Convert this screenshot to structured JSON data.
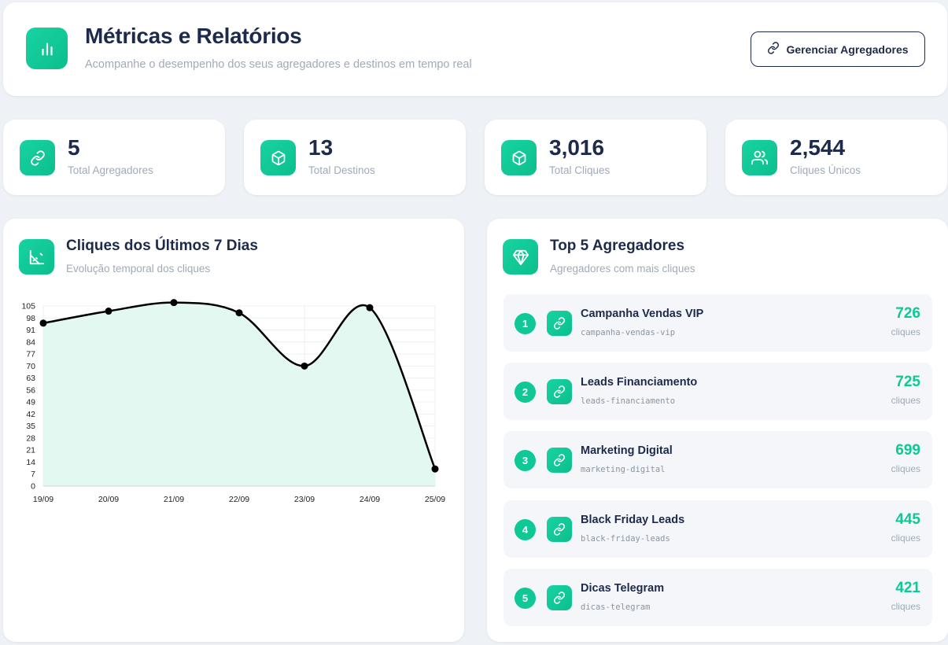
{
  "header": {
    "icon": "bar-chart-icon",
    "title": "Métricas e Relatórios",
    "subtitle": "Acompanhe o desempenho dos seus agregadores e destinos em tempo real",
    "manage_button": {
      "icon": "link-icon",
      "label": "Gerenciar Agregadores"
    }
  },
  "stats": [
    {
      "icon": "link-icon",
      "value": "5",
      "label": "Total Agregadores"
    },
    {
      "icon": "box-icon",
      "value": "13",
      "label": "Total Destinos"
    },
    {
      "icon": "box-icon",
      "value": "3,016",
      "label": "Total Cliques"
    },
    {
      "icon": "users-icon",
      "value": "2,544",
      "label": "Cliques Únicos"
    }
  ],
  "clicks_panel": {
    "icon": "chart-ruler-icon",
    "title": "Cliques dos Últimos 7 Dias",
    "subtitle": "Evolução temporal dos cliques"
  },
  "top_panel": {
    "icon": "gem-icon",
    "title": "Top 5 Agregadores",
    "subtitle": "Agregadores com mais cliques",
    "items": [
      {
        "rank": "1",
        "name": "Campanha Vendas VIP",
        "slug": "campanha-vendas-vip",
        "clicks": "726",
        "unit": "cliques"
      },
      {
        "rank": "2",
        "name": "Leads Financiamento",
        "slug": "leads-financiamento",
        "clicks": "725",
        "unit": "cliques"
      },
      {
        "rank": "3",
        "name": "Marketing Digital",
        "slug": "marketing-digital",
        "clicks": "699",
        "unit": "cliques"
      },
      {
        "rank": "4",
        "name": "Black Friday Leads",
        "slug": "black-friday-leads",
        "clicks": "445",
        "unit": "cliques"
      },
      {
        "rank": "5",
        "name": "Dicas Telegram",
        "slug": "dicas-telegram",
        "clicks": "421",
        "unit": "cliques"
      }
    ]
  },
  "colors": {
    "accent": "#10c796",
    "title": "#1e2a4a",
    "muted": "#a0aab8",
    "chart_fill": "#e3f8f1",
    "chart_line": "#000000"
  },
  "chart_data": {
    "type": "area",
    "categories": [
      "19/09",
      "20/09",
      "21/09",
      "22/09",
      "23/09",
      "24/09",
      "25/09"
    ],
    "series": [
      {
        "values": [
          95,
          102,
          107,
          101,
          70,
          104,
          10
        ]
      }
    ],
    "ylim": [
      0,
      105
    ],
    "yticks": [
      0,
      7,
      14,
      21,
      28,
      35,
      42,
      49,
      56,
      63,
      70,
      77,
      84,
      91,
      98,
      105
    ],
    "grid": true,
    "legend": "none"
  }
}
